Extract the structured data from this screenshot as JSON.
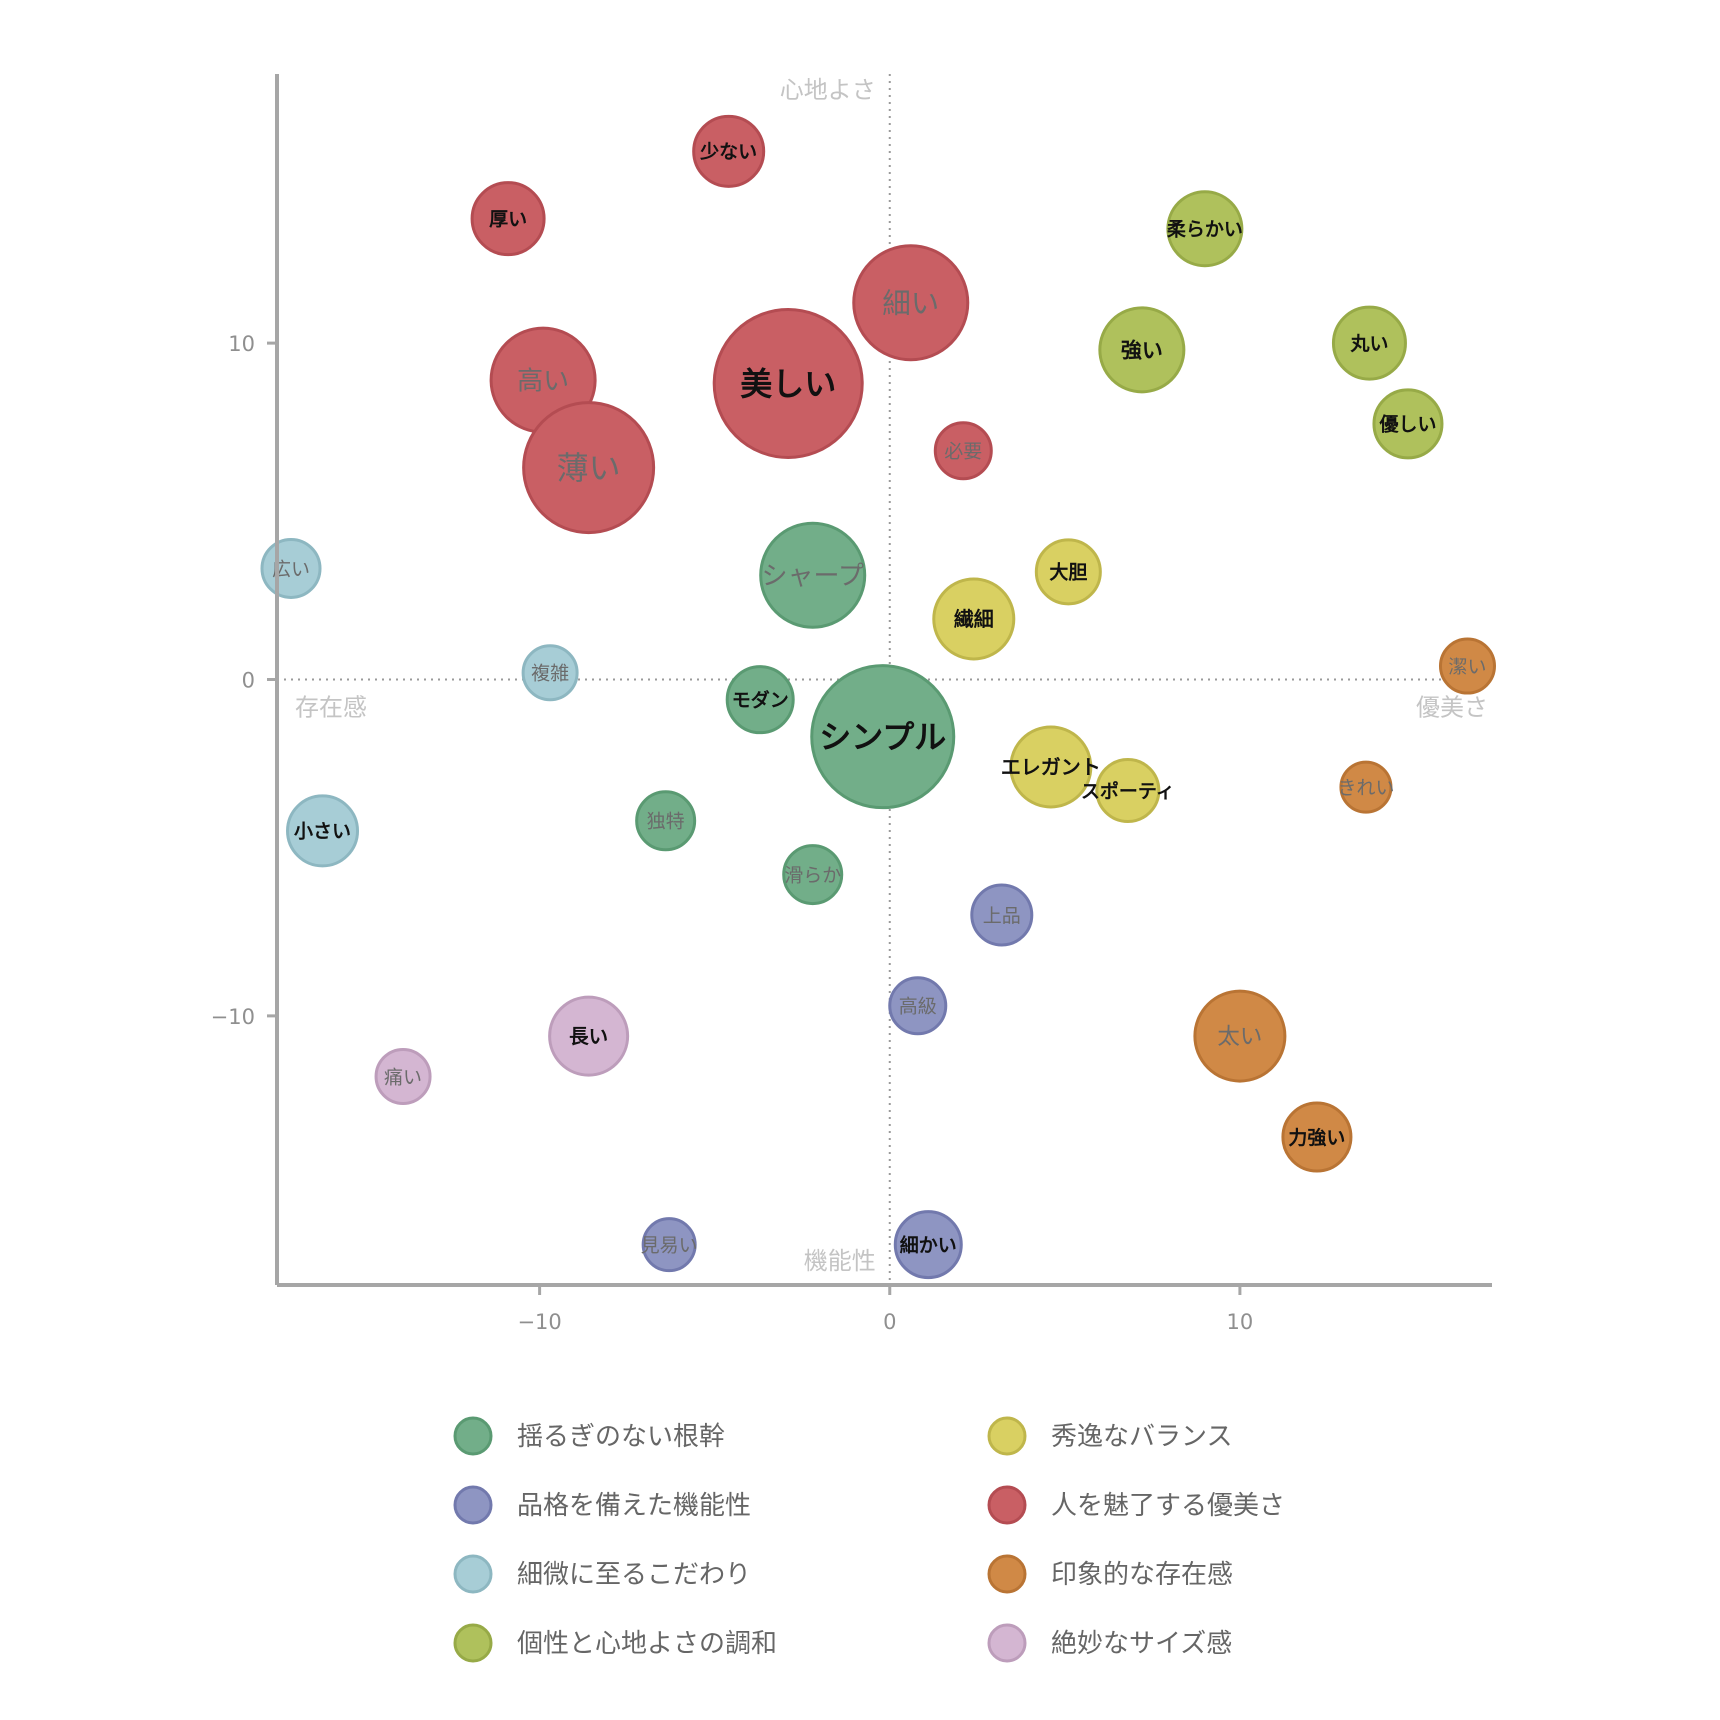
{
  "chart_data": {
    "type": "scatter",
    "bubble": true,
    "title": "",
    "xlabel": "",
    "ylabel": "",
    "xlim": [
      -17.5,
      17.2
    ],
    "ylim": [
      -18,
      18
    ],
    "xticks": [
      -10,
      0,
      10
    ],
    "yticks": [
      10,
      0,
      -10
    ],
    "tick_labels": {
      "x": [
        "−10",
        "0",
        "10"
      ],
      "y": [
        "10",
        "0",
        "−10"
      ]
    },
    "zero_lines": "dotted",
    "grid": false,
    "legend_position": "bottom",
    "axis_captions": {
      "top": "心地よさ",
      "bottom": "機能性",
      "left": "存在感",
      "right": "優美さ"
    },
    "series": [
      {
        "name": "揺るぎのない根幹",
        "color": "#72ae89",
        "edge": "#5a9a72",
        "points": [
          {
            "label": "シャープ",
            "x": -2.2,
            "y": 3.1,
            "r": 52,
            "bold": false
          },
          {
            "label": "シンプル",
            "x": -0.2,
            "y": -1.7,
            "r": 71,
            "bold": true
          },
          {
            "label": "モダン",
            "x": -3.7,
            "y": -0.6,
            "r": 33,
            "bold": true
          },
          {
            "label": "独特",
            "x": -6.4,
            "y": -4.2,
            "r": 29,
            "bold": false
          },
          {
            "label": "滑らか",
            "x": -2.2,
            "y": -5.8,
            "r": 29,
            "bold": false
          }
        ]
      },
      {
        "name": "秀逸なバランス",
        "color": "#d9d062",
        "edge": "#bfb64b",
        "points": [
          {
            "label": "大胆",
            "x": 5.1,
            "y": 3.2,
            "r": 32,
            "bold": true
          },
          {
            "label": "繊細",
            "x": 2.4,
            "y": 1.8,
            "r": 40,
            "bold": true
          },
          {
            "label": "エレガント",
            "x": 4.6,
            "y": -2.6,
            "r": 40,
            "bold": true
          },
          {
            "label": "スポーティ",
            "x": 6.8,
            "y": -3.3,
            "r": 31,
            "bold": true
          }
        ]
      },
      {
        "name": "品格を備えた機能性",
        "color": "#8e95c2",
        "edge": "#7279ad",
        "points": [
          {
            "label": "上品",
            "x": 3.2,
            "y": -7.0,
            "r": 30,
            "bold": false
          },
          {
            "label": "高級",
            "x": 0.8,
            "y": -9.7,
            "r": 28,
            "bold": false
          },
          {
            "label": "見易い",
            "x": -6.3,
            "y": -16.8,
            "r": 26,
            "bold": false
          },
          {
            "label": "細かい",
            "x": 1.1,
            "y": -16.8,
            "r": 33,
            "bold": true
          }
        ]
      },
      {
        "name": "人を魅了する優美さ",
        "color": "#c95f64",
        "edge": "#b44c52",
        "points": [
          {
            "label": "少ない",
            "x": -4.6,
            "y": 15.7,
            "r": 35,
            "bold": true
          },
          {
            "label": "厚い",
            "x": -10.9,
            "y": 13.7,
            "r": 36,
            "bold": true
          },
          {
            "label": "細い",
            "x": 0.6,
            "y": 11.2,
            "r": 57,
            "bold": false
          },
          {
            "label": "高い",
            "x": -9.9,
            "y": 8.9,
            "r": 52,
            "bold": false
          },
          {
            "label": "美しい",
            "x": -2.9,
            "y": 8.8,
            "r": 74,
            "bold": true
          },
          {
            "label": "薄い",
            "x": -8.6,
            "y": 6.3,
            "r": 65,
            "bold": false
          },
          {
            "label": "必要",
            "x": 2.1,
            "y": 6.8,
            "r": 28,
            "bold": false
          }
        ]
      },
      {
        "name": "細微に至るこだわり",
        "color": "#a7cdd6",
        "edge": "#8db7c1",
        "points": [
          {
            "label": "広い",
            "x": -17.1,
            "y": 3.3,
            "r": 29,
            "bold": false
          },
          {
            "label": "複雑",
            "x": -9.7,
            "y": 0.2,
            "r": 27,
            "bold": false
          },
          {
            "label": "小さい",
            "x": -16.2,
            "y": -4.5,
            "r": 35,
            "bold": true
          }
        ]
      },
      {
        "name": "印象的な存在感",
        "color": "#d08946",
        "edge": "#b97434",
        "points": [
          {
            "label": "潔い",
            "x": 16.5,
            "y": 0.4,
            "r": 27,
            "bold": false
          },
          {
            "label": "きれい",
            "x": 13.6,
            "y": -3.2,
            "r": 25,
            "bold": false
          },
          {
            "label": "太い",
            "x": 10.0,
            "y": -10.6,
            "r": 45,
            "bold": false
          },
          {
            "label": "力強い",
            "x": 12.2,
            "y": -13.6,
            "r": 34,
            "bold": true
          }
        ]
      },
      {
        "name": "個性と心地よさの調和",
        "color": "#afc15c",
        "edge": "#97aa47",
        "points": [
          {
            "label": "柔らかい",
            "x": 9.0,
            "y": 13.4,
            "r": 37,
            "bold": true
          },
          {
            "label": "強い",
            "x": 7.2,
            "y": 9.8,
            "r": 42,
            "bold": true
          },
          {
            "label": "丸い",
            "x": 13.7,
            "y": 10.0,
            "r": 36,
            "bold": true
          },
          {
            "label": "優しい",
            "x": 14.8,
            "y": 7.6,
            "r": 34,
            "bold": true
          }
        ]
      },
      {
        "name": "絶妙なサイズ感",
        "color": "#d4b6d2",
        "edge": "#bd9dbb",
        "points": [
          {
            "label": "長い",
            "x": -8.6,
            "y": -10.6,
            "r": 39,
            "bold": true
          },
          {
            "label": "痛い",
            "x": -13.9,
            "y": -11.8,
            "r": 27,
            "bold": false
          }
        ]
      }
    ]
  }
}
